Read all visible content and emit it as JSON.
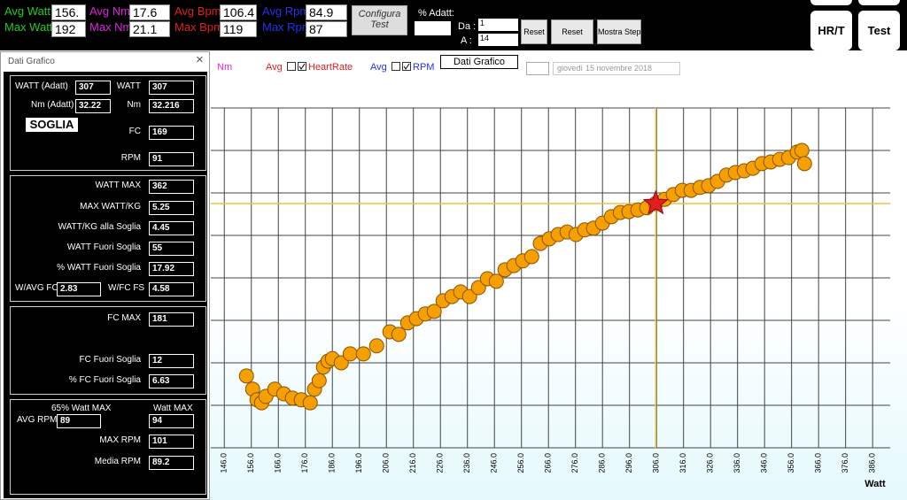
{
  "toolbar": {
    "stats": [
      {
        "label": "Avg Watt",
        "value": "156.",
        "color": "#22cc22"
      },
      {
        "label": "Max Watt",
        "value": 192,
        "color": "#22cc22"
      },
      {
        "label": "Avg Nm",
        "value": 17.6,
        "color": "#dd22dd"
      },
      {
        "label": "Max Nm",
        "value": 21.1,
        "color": "#dd22dd"
      },
      {
        "label": "Avg Bpm",
        "value": 106.4,
        "color": "#e02020"
      },
      {
        "label": "Max Bpm",
        "value": 119,
        "color": "#e02020"
      },
      {
        "label": "Avg Rpm",
        "value": 84.9,
        "color": "#2233ee"
      },
      {
        "label": "Max Rpm",
        "value": 87,
        "color": "#2233ee"
      }
    ],
    "configure_button": "Configura Test",
    "adapt_label": "% Adatt:",
    "from_label": "Da :",
    "from_value": 1,
    "to_label": "A :",
    "to_value": 14,
    "buttons": [
      "Reset",
      "Reset",
      "Mostra Step"
    ],
    "right_buttons": [
      "HR/T",
      "Test"
    ]
  },
  "legend": {
    "nm": "Nm",
    "hr_avg": "Avg",
    "hr": "HeartRate",
    "rpm_avg": "Avg",
    "rpm": "RPM",
    "button": "Dati Grafico",
    "date_day": "giovedì",
    "date": "15 novembre 2018"
  },
  "dialog": {
    "title": "Dati Grafico",
    "close": "×",
    "soglia": "SOGLIA",
    "fields": [
      {
        "label": "WATT (Adatt)",
        "value": 307
      },
      {
        "label": "WATT",
        "value": 307
      },
      {
        "label": "Nm (Adatt)",
        "value": 32.22
      },
      {
        "label": "Nm",
        "value": 32.216
      },
      {
        "label": "FC",
        "value": 169
      },
      {
        "label": "RPM",
        "value": 91
      },
      {
        "label": "WATT MAX",
        "value": 362
      },
      {
        "label": "MAX WATT/KG",
        "value": 5.25
      },
      {
        "label": "WATT/KG alla Soglia",
        "value": 4.45
      },
      {
        "label": "WATT Fuori Soglia",
        "value": 55
      },
      {
        "label": "% WATT Fuori Soglia",
        "value": 17.92
      },
      {
        "label": "W/AVG FC",
        "value": 2.83
      },
      {
        "label": "W/FC FS",
        "value": 4.58
      },
      {
        "label": "FC MAX",
        "value": 181
      },
      {
        "label": "FC Fuori Soglia",
        "value": 12
      },
      {
        "label": "% FC Fuori Soglia",
        "value": 6.63
      },
      {
        "label": "AVG RPM",
        "value": 89
      },
      {
        "label": "MAX RPM",
        "value": 101
      },
      {
        "label": "Media RPM",
        "value": 89.2
      }
    ],
    "rpm_header_left": "65% Watt MAX",
    "rpm_header_right": "Watt MAX",
    "avg_rpm_watt_max": 94
  },
  "chart_data": {
    "type": "scatter",
    "xlabel": "Watt",
    "color": "#f5a000",
    "xlim": [
      141,
      392.5
    ],
    "ylim": [
      0,
      8
    ],
    "xticks": [
      {
        "value": 146,
        "label": "146.0"
      },
      {
        "value": 156,
        "label": "156.0"
      },
      {
        "value": 166,
        "label": "166.0"
      },
      {
        "value": 176,
        "label": "176.0"
      },
      {
        "value": 186,
        "label": "186.0"
      },
      {
        "value": 196,
        "label": "196.0"
      },
      {
        "value": 206,
        "label": "206.0"
      },
      {
        "value": 216,
        "label": "216.0"
      },
      {
        "value": 226,
        "label": "226.0"
      },
      {
        "value": 236,
        "label": "236.0"
      },
      {
        "value": 246,
        "label": "246.0"
      },
      {
        "value": 256,
        "label": "256.0"
      },
      {
        "value": 266,
        "label": "266.0"
      },
      {
        "value": 276,
        "label": "276.0"
      },
      {
        "value": 286,
        "label": "286.0"
      },
      {
        "value": 296,
        "label": "296.0"
      },
      {
        "value": 306,
        "label": "306.0"
      },
      {
        "value": 316,
        "label": "316.0"
      },
      {
        "value": 326,
        "label": "326.0"
      },
      {
        "value": 336,
        "label": "336.0"
      },
      {
        "value": 346,
        "label": "346.0"
      },
      {
        "value": 356,
        "label": "356.0"
      },
      {
        "value": 366,
        "label": "366.0"
      },
      {
        "value": 376,
        "label": "376.0"
      },
      {
        "value": 386,
        "label": "386.0"
      }
    ],
    "x": [
      154.2,
      156.5,
      158.1,
      159.8,
      161.4,
      164.7,
      168.0,
      171.2,
      174.5,
      177.8,
      179.4,
      181.1,
      182.7,
      184.4,
      186.0,
      189.3,
      192.6,
      197.5,
      202.4,
      207.3,
      210.6,
      213.9,
      217.1,
      220.4,
      223.7,
      227.0,
      230.3,
      233.5,
      236.8,
      240.1,
      243.4,
      246.7,
      249.9,
      253.2,
      256.5,
      259.8,
      263.0,
      266.3,
      269.6,
      272.9,
      276.2,
      279.4,
      282.7,
      286.0,
      289.3,
      292.6,
      295.8,
      299.1,
      302.4,
      305.7,
      309.0,
      312.2,
      315.5,
      318.8,
      322.1,
      325.3,
      328.6,
      331.9,
      335.2,
      338.5,
      341.7,
      345.0,
      348.3,
      351.6,
      354.9,
      358.1,
      359.8,
      360.8
    ],
    "values": [
      1.69,
      1.38,
      1.13,
      1.06,
      1.21,
      1.38,
      1.27,
      1.17,
      1.13,
      1.06,
      1.38,
      1.58,
      1.9,
      2.04,
      2.1,
      2.0,
      2.21,
      2.21,
      2.4,
      2.73,
      2.67,
      2.94,
      3.04,
      3.15,
      3.21,
      3.46,
      3.56,
      3.67,
      3.56,
      3.77,
      3.98,
      3.92,
      4.19,
      4.29,
      4.4,
      4.5,
      4.81,
      4.92,
      5.02,
      5.08,
      5.02,
      5.13,
      5.17,
      5.29,
      5.44,
      5.54,
      5.56,
      5.6,
      5.65,
      5.75,
      5.85,
      5.96,
      6.06,
      6.06,
      6.13,
      6.17,
      6.27,
      6.42,
      6.48,
      6.52,
      6.58,
      6.69,
      6.73,
      6.79,
      6.83,
      6.96,
      7.0,
      6.69
    ],
    "marker": {
      "x": 305.7,
      "y": 5.75,
      "color": "#e02020"
    }
  }
}
